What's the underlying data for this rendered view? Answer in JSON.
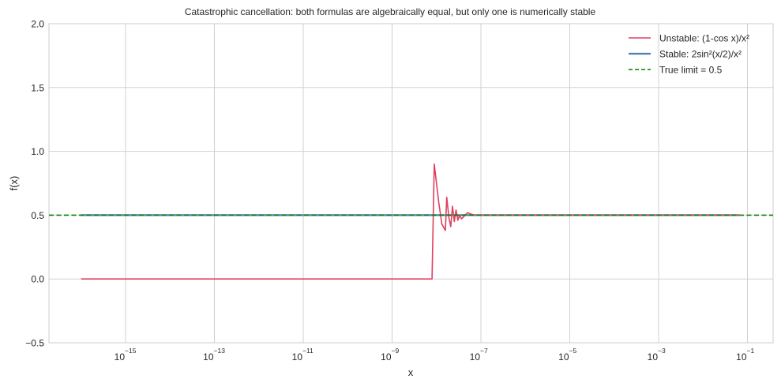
{
  "chart_data": {
    "type": "line",
    "title": "Catastrophic cancellation: both formulas are algebraically equal, but only one is numerically stable",
    "xlabel": "x",
    "ylabel": "f(x)",
    "xscale": "log",
    "xlim_log10": [
      -17.0,
      0.55
    ],
    "ylim": [
      -0.5,
      2.0
    ],
    "grid": true,
    "legend_position": "upper right",
    "x_ticks": [
      {
        "base": "10",
        "exp": "−15",
        "log10": -15
      },
      {
        "base": "10",
        "exp": "−13",
        "log10": -13
      },
      {
        "base": "10",
        "exp": "−11",
        "log10": -11
      },
      {
        "base": "10",
        "exp": "−9",
        "log10": -9
      },
      {
        "base": "10",
        "exp": "−7",
        "log10": -7
      },
      {
        "base": "10",
        "exp": "−5",
        "log10": -5
      },
      {
        "base": "10",
        "exp": "−3",
        "log10": -3
      },
      {
        "base": "10",
        "exp": "−1",
        "log10": -1
      }
    ],
    "y_ticks": [
      {
        "label": "2.0",
        "value": 2.0
      },
      {
        "label": "1.5",
        "value": 1.5
      },
      {
        "label": "1.0",
        "value": 1.0
      },
      {
        "label": "0.5",
        "value": 0.5
      },
      {
        "label": "0.0",
        "value": 0.0
      },
      {
        "label": "−0.5",
        "value": -0.5
      }
    ],
    "series": [
      {
        "name": "Unstable: (1-cos x)/x²",
        "color": "#e0405e",
        "style": "solid",
        "points_log10x_y": [
          [
            -16.0,
            0.0
          ],
          [
            -8.1,
            0.0
          ],
          [
            -8.05,
            0.9
          ],
          [
            -7.95,
            0.6
          ],
          [
            -7.88,
            0.43
          ],
          [
            -7.8,
            0.38
          ],
          [
            -7.77,
            0.64
          ],
          [
            -7.72,
            0.48
          ],
          [
            -7.68,
            0.41
          ],
          [
            -7.64,
            0.57
          ],
          [
            -7.6,
            0.45
          ],
          [
            -7.56,
            0.54
          ],
          [
            -7.52,
            0.46
          ],
          [
            -7.48,
            0.5
          ],
          [
            -7.44,
            0.47
          ],
          [
            -7.38,
            0.49
          ],
          [
            -7.3,
            0.52
          ],
          [
            -7.24,
            0.51
          ],
          [
            -7.15,
            0.5
          ],
          [
            -1.18,
            0.5
          ]
        ]
      },
      {
        "name": "Stable: 2sin²(x/2)/x²",
        "color": "#4a7fb5",
        "style": "solid",
        "points_log10x_y": [
          [
            -16.0,
            0.5
          ],
          [
            -1.18,
            0.5
          ]
        ]
      },
      {
        "name": "True limit = 0.5",
        "color": "#008000",
        "style": "dashed",
        "value": 0.5
      }
    ]
  }
}
